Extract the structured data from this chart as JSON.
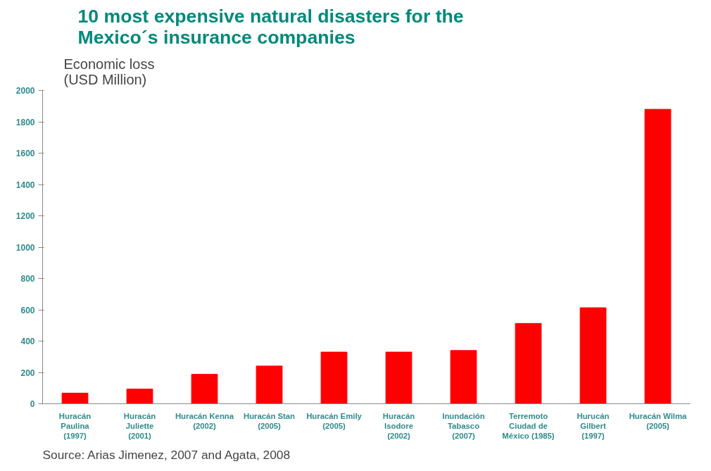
{
  "chart_data": {
    "type": "bar",
    "title": "10 most expensive natural disasters for the Mexico´s insurance companies",
    "ylabel": "Economic loss (USD Million)",
    "categories": [
      "Huracán Paulina (1997)",
      "Huracán Juliette (2001)",
      "Huracán Kenna (2002)",
      "Huracán Stan (2005)",
      "Huracán Emily (2005)",
      "Huracán Isodore (2002)",
      "Inundación Tabasco (2007)",
      "Terremoto Ciudad de México (1985)",
      "Hurucán Gilbert (1997)",
      "Huracán Wilma (2005)"
    ],
    "values": [
      68,
      94,
      188,
      241,
      330,
      330,
      340,
      513,
      613,
      1880
    ],
    "color": "#ff0000",
    "ylim": [
      0,
      2000
    ],
    "yticks": [
      0,
      200,
      400,
      600,
      800,
      1000,
      1200,
      1400,
      1600,
      1800,
      2000
    ],
    "grid": false,
    "annotations": [
      "Source: Arias Jimenez, 2007 and Agata, 2008"
    ]
  }
}
